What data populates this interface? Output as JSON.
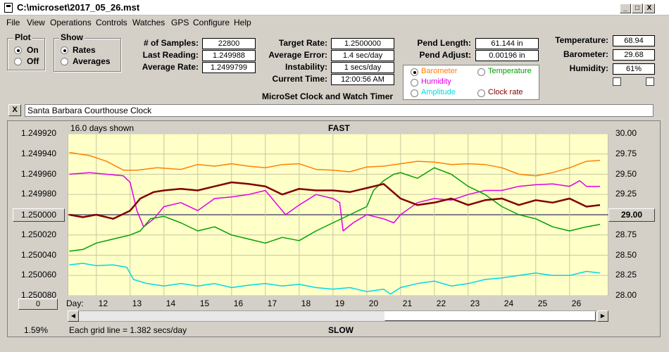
{
  "window": {
    "title": "C:\\microset\\2017_05_26.mst",
    "minimize": "_",
    "maximize": "□",
    "close": "X"
  },
  "menu": [
    "File",
    "View",
    "Operations",
    "Controls",
    "Watches",
    "GPS",
    "Configure",
    "Help"
  ],
  "plot_group": {
    "title": "Plot",
    "options": [
      "On",
      "Off"
    ],
    "selected": "On"
  },
  "show_group": {
    "title": "Show",
    "options": [
      "Rates",
      "Averages"
    ],
    "selected": "Rates"
  },
  "stats_left": [
    {
      "label": "# of Samples:",
      "value": "22800"
    },
    {
      "label": "Last Reading:",
      "value": "1.249988"
    },
    {
      "label": "Average Rate:",
      "value": "1.2499799"
    }
  ],
  "stats_mid": [
    {
      "label": "Target Rate:",
      "value": "1.2500000"
    },
    {
      "label": "Average Error:",
      "value": "1.4 sec/day"
    },
    {
      "label": "Instability:",
      "value": "1 secs/day"
    },
    {
      "label": "Current Time:",
      "value": "12:00:56 AM"
    }
  ],
  "pend": [
    {
      "label": "Pend Length:",
      "value": "61.144 in"
    },
    {
      "label": "Pend Adjust:",
      "value": "0.00196 in"
    }
  ],
  "env": [
    {
      "label": "Temperature:",
      "value": "68.94"
    },
    {
      "label": "Barometer:",
      "value": "29.68"
    },
    {
      "label": "Humidity:",
      "value": "61%"
    }
  ],
  "app_caption": "MicroSet Clock and Watch Timer",
  "series_select": {
    "options": [
      {
        "label": "Barometer",
        "color": "#ff8000",
        "selected": true
      },
      {
        "label": "Temperature",
        "color": "#00a000",
        "selected": false
      },
      {
        "label": "Humidity",
        "color": "#e000e0",
        "selected": false
      },
      {
        "label": "Clock rate",
        "color": "#800000",
        "selected": false
      },
      {
        "label": "Amplitude",
        "color": "#00d8e8",
        "selected": false
      }
    ]
  },
  "watch_name": "Santa Barbara Courthouse Clock",
  "close_button": "X",
  "chart_top": {
    "days_shown": "16.0 days shown",
    "fast_label": "FAST"
  },
  "chart_bottom": {
    "grid_note": "Each grid line = 1.382 secs/day",
    "slow_label": "SLOW",
    "percent": "1.59%",
    "day_label": "Day:"
  },
  "left_center_button": "1.250000",
  "right_center_button": "29.00",
  "zero_button": "0",
  "chart_data": {
    "type": "line",
    "x_label": "Day:",
    "x_ticks": [
      "12",
      "13",
      "14",
      "15",
      "16",
      "17",
      "18",
      "19",
      "20",
      "21",
      "22",
      "23",
      "24",
      "25",
      "26"
    ],
    "xlim": [
      11.15,
      27.15
    ],
    "y_left_ticks": [
      "1.249920",
      "1.249940",
      "1.249960",
      "1.249980",
      "1.250000",
      "1.250020",
      "1.250040",
      "1.250060",
      "1.250080"
    ],
    "y_left_range": [
      1.24992,
      1.25008
    ],
    "y_right_ticks": [
      "30.00",
      "29.75",
      "29.50",
      "29.25",
      "29.00",
      "28.75",
      "28.50",
      "28.25",
      "28.00"
    ],
    "y_right_range": [
      30.0,
      28.0
    ],
    "grid": true,
    "background": "#ffffc8",
    "series": [
      {
        "name": "Barometer",
        "color": "#ff8000",
        "axis": "right",
        "x": [
          11.2,
          11.8,
          12.3,
          12.8,
          13.2,
          13.8,
          14.5,
          15.0,
          15.5,
          16.0,
          16.5,
          17.0,
          17.5,
          18.0,
          18.5,
          19.0,
          19.5,
          20.0,
          20.5,
          21.0,
          21.5,
          22.0,
          22.5,
          23.0,
          23.5,
          24.0,
          24.5,
          25.0,
          25.5,
          26.0,
          26.5,
          26.9
        ],
        "y": [
          29.77,
          29.73,
          29.66,
          29.55,
          29.55,
          29.58,
          29.56,
          29.62,
          29.6,
          29.63,
          29.6,
          29.58,
          29.62,
          29.63,
          29.56,
          29.55,
          29.53,
          29.59,
          29.6,
          29.63,
          29.66,
          29.65,
          29.62,
          29.63,
          29.62,
          29.58,
          29.5,
          29.48,
          29.52,
          29.58,
          29.66,
          29.67
        ]
      },
      {
        "name": "Humidity",
        "color": "#e000e0",
        "axis": "right",
        "x": [
          11.2,
          11.8,
          12.3,
          12.8,
          13.0,
          13.2,
          13.4,
          13.7,
          14.0,
          14.5,
          15.0,
          15.5,
          16.0,
          16.5,
          17.0,
          17.3,
          17.6,
          18.0,
          18.5,
          19.0,
          19.2,
          19.3,
          19.6,
          20.0,
          20.5,
          20.8,
          21.0,
          21.5,
          22.0,
          22.5,
          23.0,
          23.5,
          24.0,
          24.5,
          25.0,
          25.5,
          26.0,
          26.3,
          26.5,
          26.9
        ],
        "y": [
          29.5,
          29.52,
          29.5,
          29.48,
          29.4,
          29.05,
          28.85,
          28.95,
          29.1,
          29.15,
          29.05,
          29.2,
          29.22,
          29.25,
          29.3,
          29.15,
          29.0,
          29.12,
          29.25,
          29.2,
          29.15,
          28.8,
          28.9,
          29.0,
          28.95,
          28.9,
          29.0,
          29.15,
          29.2,
          29.18,
          29.25,
          29.3,
          29.3,
          29.35,
          29.37,
          29.38,
          29.35,
          29.42,
          29.35,
          29.35
        ]
      },
      {
        "name": "Temperature",
        "color": "#00a000",
        "axis": "right",
        "x": [
          11.2,
          11.6,
          12.0,
          12.5,
          13.0,
          13.3,
          13.6,
          14.0,
          14.5,
          15.0,
          15.5,
          16.0,
          16.5,
          17.0,
          17.5,
          18.0,
          18.5,
          19.0,
          19.5,
          20.0,
          20.2,
          20.5,
          20.8,
          21.0,
          21.5,
          22.0,
          22.5,
          23.0,
          23.5,
          24.0,
          24.5,
          25.0,
          25.5,
          26.0,
          26.5,
          26.9
        ],
        "y": [
          28.55,
          28.57,
          28.65,
          28.7,
          28.75,
          28.8,
          28.95,
          28.98,
          28.9,
          28.8,
          28.85,
          28.75,
          28.7,
          28.65,
          28.72,
          28.68,
          28.8,
          28.9,
          29.0,
          29.1,
          29.3,
          29.42,
          29.5,
          29.52,
          29.45,
          29.58,
          29.5,
          29.35,
          29.25,
          29.1,
          29.0,
          28.95,
          28.85,
          28.8,
          28.85,
          28.88
        ]
      },
      {
        "name": "Clock rate",
        "color": "#800000",
        "axis": "right",
        "x": [
          11.2,
          11.6,
          12.0,
          12.5,
          13.0,
          13.3,
          13.7,
          14.0,
          14.5,
          15.0,
          15.5,
          16.0,
          16.5,
          17.0,
          17.5,
          18.0,
          18.5,
          19.0,
          19.5,
          20.0,
          20.5,
          21.0,
          21.5,
          22.0,
          22.5,
          23.0,
          23.5,
          24.0,
          24.5,
          25.0,
          25.5,
          26.0,
          26.5,
          26.9
        ],
        "y": [
          29.0,
          28.97,
          29.0,
          28.95,
          29.05,
          29.2,
          29.28,
          29.3,
          29.32,
          29.3,
          29.35,
          29.4,
          29.38,
          29.35,
          29.25,
          29.32,
          29.3,
          29.3,
          29.28,
          29.33,
          29.38,
          29.2,
          29.12,
          29.15,
          29.2,
          29.12,
          29.18,
          29.2,
          29.12,
          29.18,
          29.15,
          29.2,
          29.1,
          29.12
        ]
      },
      {
        "name": "Amplitude",
        "color": "#00d8e8",
        "axis": "right",
        "x": [
          11.2,
          11.6,
          12.0,
          12.5,
          12.9,
          13.1,
          13.5,
          14.0,
          14.5,
          15.0,
          15.5,
          16.0,
          16.5,
          17.0,
          17.5,
          18.0,
          18.5,
          19.0,
          19.5,
          20.0,
          20.5,
          20.7,
          21.0,
          21.5,
          22.0,
          22.5,
          23.0,
          23.5,
          24.0,
          24.5,
          25.0,
          25.5,
          26.0,
          26.5,
          26.9
        ],
        "y": [
          28.38,
          28.4,
          28.37,
          28.38,
          28.35,
          28.2,
          28.15,
          28.12,
          28.15,
          28.12,
          28.15,
          28.1,
          28.13,
          28.15,
          28.12,
          28.14,
          28.1,
          28.08,
          28.1,
          28.05,
          28.08,
          28.02,
          28.1,
          28.15,
          28.18,
          28.12,
          28.15,
          28.2,
          28.22,
          28.25,
          28.28,
          28.25,
          28.25,
          28.3,
          28.28
        ]
      }
    ]
  }
}
